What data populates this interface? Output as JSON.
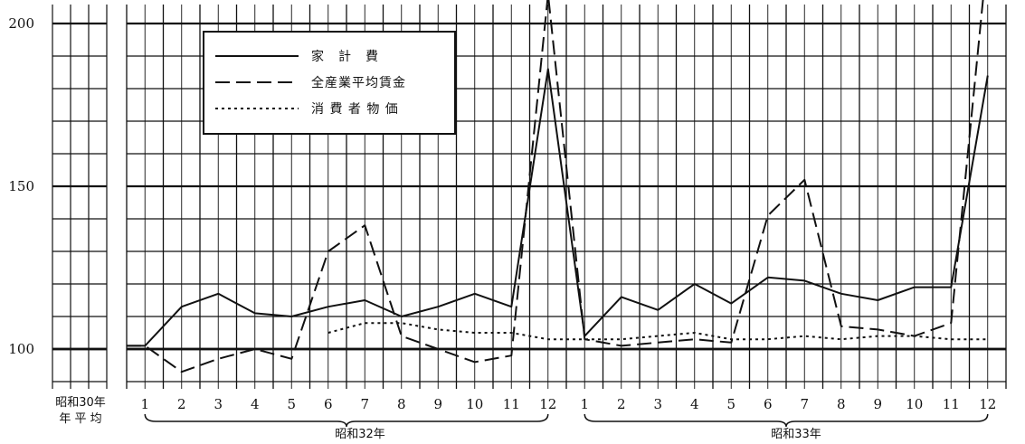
{
  "chart_data": {
    "type": "line",
    "y_ticks": [
      100,
      150,
      200
    ],
    "ylim": [
      82,
      225
    ],
    "base_label": [
      "昭和30年",
      "年 平 均"
    ],
    "year_labels": [
      "昭和32年",
      "昭和33年"
    ],
    "categories": [
      "1",
      "2",
      "3",
      "4",
      "5",
      "6",
      "7",
      "8",
      "9",
      "10",
      "11",
      "12",
      "1",
      "2",
      "3",
      "4",
      "5",
      "6",
      "7",
      "8",
      "9",
      "10",
      "11",
      "12"
    ],
    "base_value": 100,
    "grid": true,
    "legend_position": "top-left",
    "series": [
      {
        "name": "家　計　費",
        "style": "solid",
        "values": [
          101,
          113,
          117,
          111,
          110,
          113,
          115,
          110,
          113,
          117,
          113,
          186,
          104,
          116,
          112,
          120,
          114,
          122,
          121,
          117,
          115,
          119,
          119,
          184
        ]
      },
      {
        "name": "全産業平均賃金",
        "style": "dashed",
        "values": [
          101,
          93,
          97,
          100,
          97,
          130,
          138,
          104,
          100,
          96,
          98,
          209,
          103,
          101,
          102,
          103,
          102,
          141,
          152,
          107,
          106,
          104,
          108,
          222
        ]
      },
      {
        "name": "消 費 者 物 価",
        "style": "dotted",
        "values": [
          null,
          null,
          null,
          null,
          null,
          105,
          108,
          108,
          106,
          105,
          105,
          103,
          103,
          103,
          104,
          105,
          103,
          103,
          104,
          103,
          104,
          104,
          103,
          103
        ]
      }
    ]
  }
}
